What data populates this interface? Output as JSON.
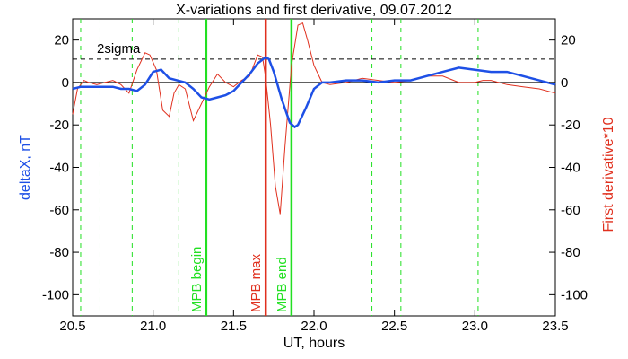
{
  "chart_data": {
    "type": "line",
    "title": "X-variations and first derivative, 09.07.2012",
    "xlabel": "UT, hours",
    "ylabel_left": "deltaX, nT",
    "ylabel_right": "First derivative*10",
    "xlim": [
      20.5,
      23.5
    ],
    "ylim": [
      -110,
      30
    ],
    "x_ticks": [
      20.5,
      21.0,
      21.5,
      22.0,
      22.5,
      23.0,
      23.5
    ],
    "x_tick_labels": [
      "20.5",
      "21.0",
      "21.5",
      "22.0",
      "22.5",
      "23.0",
      "23.5"
    ],
    "y_ticks": [
      20,
      0,
      -20,
      -40,
      -60,
      -80,
      -100
    ],
    "y_tick_labels": [
      "20",
      "0",
      "-20",
      "-40",
      "-60",
      "-80",
      "-100"
    ],
    "grid": false,
    "colors": {
      "deltaX": "#1e50e6",
      "derivative": "#e0301e",
      "green": "#22e022",
      "mpb_max": "#e0301e",
      "axis": "#000000"
    },
    "sigma_level": 11,
    "sigma_label": "2sigma",
    "zero_line": 0,
    "dashed_green_lines": [
      20.55,
      20.67,
      20.87,
      21.16,
      22.36,
      22.54,
      23.02
    ],
    "markers": [
      {
        "label": "MPB begin",
        "x": 21.33,
        "color": "#22e022"
      },
      {
        "label": "MPB max",
        "x": 21.7,
        "color": "#e0301e"
      },
      {
        "label": "MPB end",
        "x": 21.86,
        "color": "#22e022"
      }
    ],
    "series": [
      {
        "name": "deltaX, nT",
        "color": "#1e50e6",
        "x": [
          20.5,
          20.55,
          20.6,
          20.65,
          20.7,
          20.75,
          20.8,
          20.85,
          20.9,
          20.95,
          21.0,
          21.05,
          21.1,
          21.15,
          21.2,
          21.25,
          21.3,
          21.35,
          21.4,
          21.45,
          21.5,
          21.55,
          21.6,
          21.65,
          21.7,
          21.72,
          21.75,
          21.8,
          21.85,
          21.88,
          21.9,
          21.95,
          22.0,
          22.05,
          22.1,
          22.2,
          22.3,
          22.4,
          22.5,
          22.6,
          22.7,
          22.8,
          22.9,
          23.0,
          23.1,
          23.2,
          23.3,
          23.4,
          23.5
        ],
        "values": [
          -3,
          -2,
          -2,
          -2,
          -2,
          -2,
          -3,
          -3,
          -4,
          -1,
          5,
          6,
          2,
          1,
          0,
          -3,
          -7,
          -8,
          -7,
          -6,
          -4,
          0,
          4,
          9,
          12,
          11,
          5,
          -8,
          -19,
          -21,
          -20,
          -12,
          -3,
          0,
          0,
          1,
          1,
          0,
          1,
          1,
          3,
          5,
          7,
          6,
          5,
          5,
          3,
          1,
          -1
        ]
      },
      {
        "name": "First derivative*10",
        "color": "#e0301e",
        "x": [
          20.5,
          20.53,
          20.57,
          20.6,
          20.65,
          20.7,
          20.75,
          20.8,
          20.85,
          20.9,
          20.95,
          20.98,
          21.02,
          21.06,
          21.1,
          21.13,
          21.16,
          21.2,
          21.25,
          21.3,
          21.35,
          21.4,
          21.45,
          21.5,
          21.55,
          21.6,
          21.65,
          21.68,
          21.7,
          21.73,
          21.76,
          21.79,
          21.82,
          21.86,
          21.9,
          21.93,
          21.96,
          22.0,
          22.05,
          22.1,
          22.2,
          22.3,
          22.4,
          22.5,
          22.6,
          22.7,
          22.8,
          22.9,
          23.0,
          23.05,
          23.1,
          23.2,
          23.3,
          23.4,
          23.5
        ],
        "values": [
          -15,
          -3,
          1,
          0,
          -1,
          0,
          1,
          -1,
          -5,
          6,
          14,
          13,
          6,
          -13,
          -16,
          -5,
          -1,
          -3,
          -18,
          -10,
          -2,
          4,
          0,
          -2,
          1,
          3,
          13,
          12,
          2,
          -20,
          -49,
          -62,
          -30,
          8,
          27,
          28,
          20,
          8,
          0,
          -1,
          0,
          2,
          1,
          0,
          1,
          3,
          3,
          0,
          0,
          1,
          1,
          -1,
          -2,
          -3,
          -5
        ]
      }
    ]
  }
}
